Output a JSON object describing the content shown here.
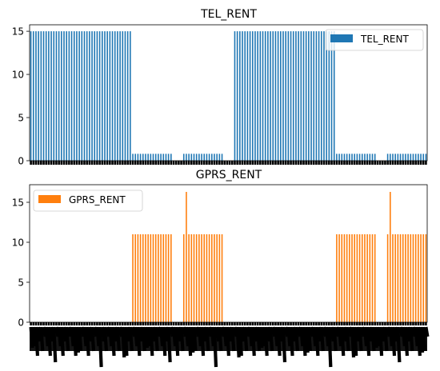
{
  "chart_data": [
    {
      "type": "bar",
      "title": "TEL_RENT",
      "xlabel": "",
      "ylabel": "",
      "ylim": [
        0,
        15.75
      ],
      "yticks": [
        0,
        5,
        10,
        15
      ],
      "legend": {
        "placement": "top-right",
        "label": "TEL_RENT"
      },
      "color": "#1f77b4",
      "x_tick_labels_visible": false,
      "segments": [
        {
          "count": 40,
          "value": 15
        },
        {
          "count": 16,
          "value": 0.8
        },
        {
          "count": 4,
          "value": 0
        },
        {
          "count": 16,
          "value": 0.8
        },
        {
          "count": 4,
          "value": 0
        },
        {
          "count": 40,
          "value": 15
        },
        {
          "count": 16,
          "value": 0.8
        },
        {
          "count": 4,
          "value": 0
        },
        {
          "count": 16,
          "value": 0.8
        }
      ]
    },
    {
      "type": "bar",
      "title": "GPRS_RENT",
      "xlabel": "",
      "ylabel": "",
      "ylim": [
        0,
        17.2
      ],
      "yticks": [
        0,
        5,
        10,
        15
      ],
      "legend": {
        "placement": "top-left",
        "label": "GPRS_RENT"
      },
      "color": "#ff7f0e",
      "x_tick_labels_visible": true,
      "segments": [
        {
          "count": 40,
          "value": 0
        },
        {
          "count": 16,
          "value": 11
        },
        {
          "count": 4,
          "value": 0
        },
        {
          "count": 16,
          "value": 11
        },
        {
          "count": 4,
          "value": 0
        },
        {
          "count": 40,
          "value": 0
        },
        {
          "count": 16,
          "value": 11
        },
        {
          "count": 4,
          "value": 0
        },
        {
          "count": 16,
          "value": 11
        }
      ],
      "spikes": [
        {
          "index": 61,
          "value": 16.3
        },
        {
          "index": 141,
          "value": 16.3
        }
      ]
    }
  ]
}
